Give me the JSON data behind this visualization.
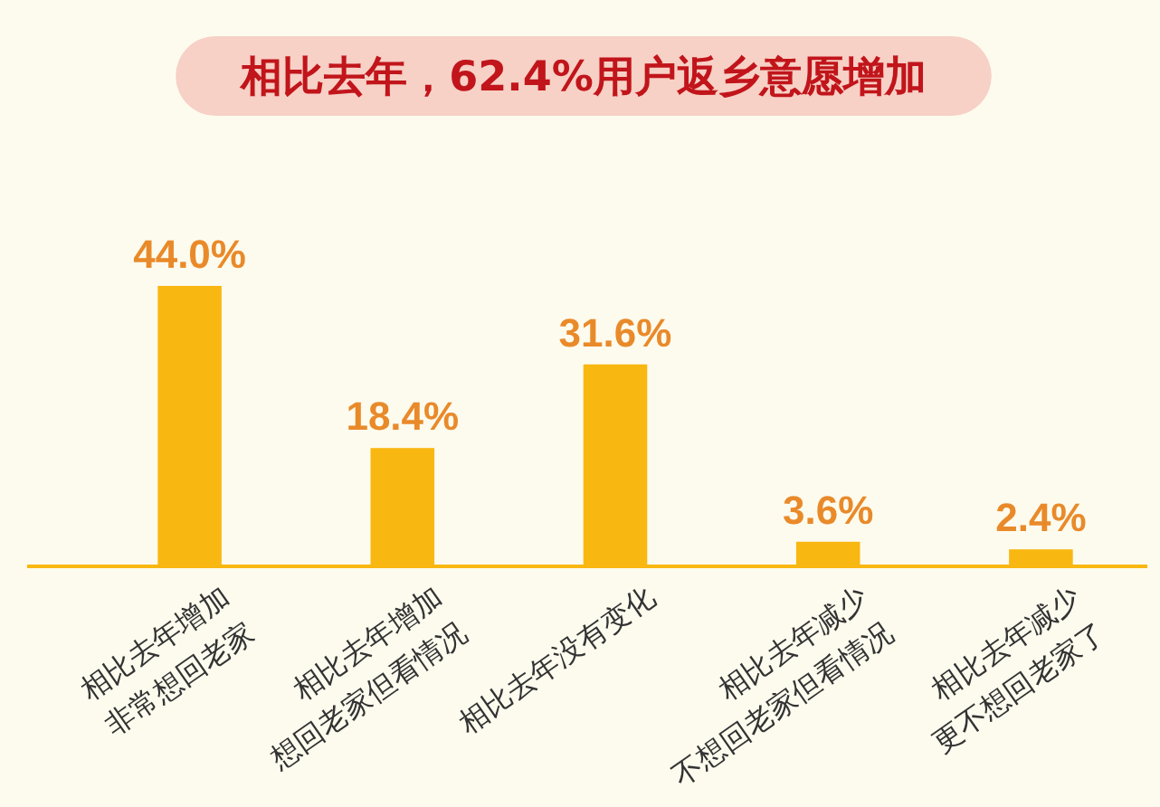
{
  "chart_data": {
    "type": "bar",
    "title": "相比去年，62.4%用户返乡意愿增加",
    "categories": [
      "相比去年增加\n非常想回老家",
      "相比去年增加\n想回老家但看情况",
      "相比去年没有变化",
      "相比去年减少\n不想回老家但看情况",
      "相比去年减少\n更不想回老家了"
    ],
    "values": [
      44.0,
      18.4,
      31.6,
      3.6,
      2.4
    ],
    "value_labels": [
      "44.0%",
      "18.4%",
      "31.6%",
      "3.6%",
      "2.4%"
    ],
    "color": "#f9b711"
  }
}
